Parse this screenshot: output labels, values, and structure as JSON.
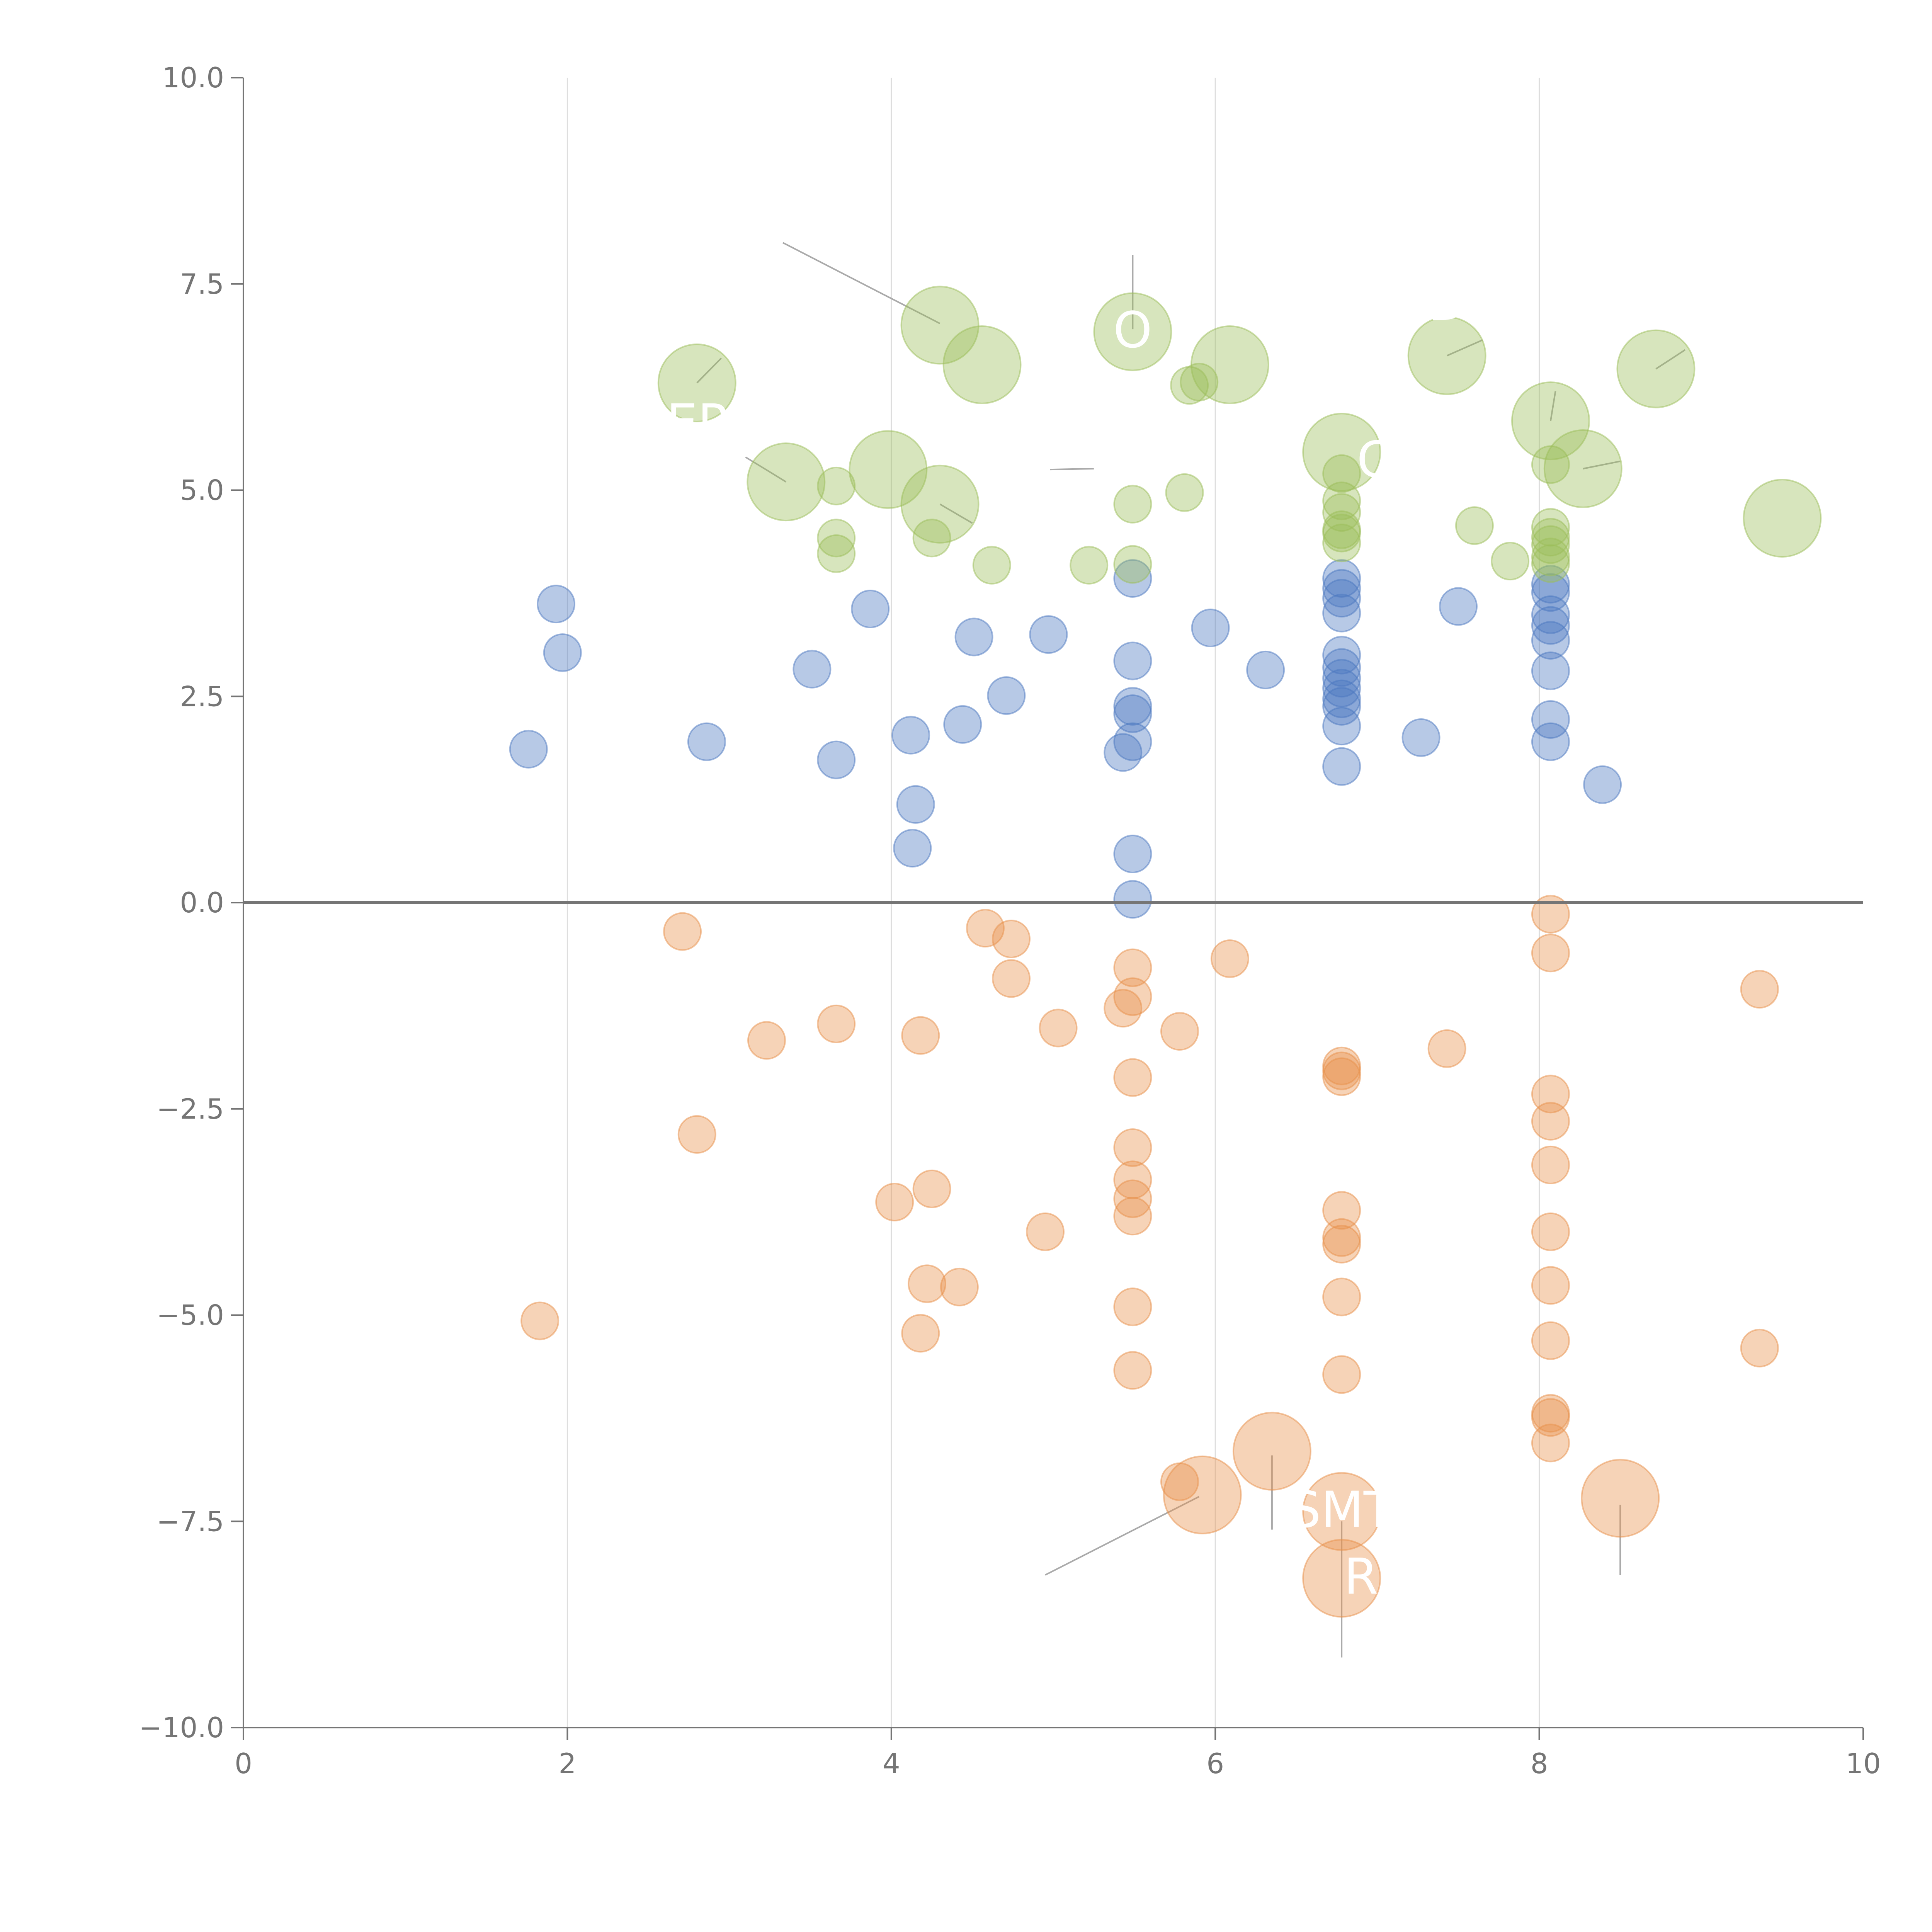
{
  "chart_data": {
    "type": "scatter",
    "title": "",
    "xlabel": "",
    "ylabel": "",
    "xlim": [
      0,
      10
    ],
    "ylim": [
      -10,
      10
    ],
    "x_ticks": [
      "0",
      "2",
      "4",
      "6",
      "8",
      "10"
    ],
    "y_ticks": [
      "10.0",
      "7.5",
      "5.0",
      "2.5",
      "0.0",
      "−2.5",
      "−5.0",
      "−7.5",
      "−10.0"
    ],
    "grid": "vertical",
    "colors": {
      "blue": "#4c78c0",
      "orange": "#e8904a",
      "green": "#9bbe5a",
      "axis": "#757575",
      "grid": "#dddddd",
      "leader": "#aaaaaa"
    },
    "series": [
      {
        "name": "blue",
        "color": "#4c78c0",
        "points": [
          [
            1.76,
            1.86
          ],
          [
            1.93,
            3.62
          ],
          [
            1.97,
            3.03
          ],
          [
            2.86,
            1.95
          ],
          [
            3.51,
            2.83
          ],
          [
            3.66,
            1.73
          ],
          [
            3.87,
            3.56
          ],
          [
            4.12,
            2.03
          ],
          [
            4.15,
            1.19
          ],
          [
            4.13,
            0.66
          ],
          [
            4.44,
            2.16
          ],
          [
            4.51,
            3.22
          ],
          [
            4.71,
            2.51
          ],
          [
            4.97,
            3.25
          ],
          [
            5.43,
            1.82
          ],
          [
            5.49,
            0.59
          ],
          [
            5.49,
            0.04
          ],
          [
            5.49,
            1.95
          ],
          [
            5.49,
            2.29
          ],
          [
            5.49,
            2.38
          ],
          [
            5.49,
            2.93
          ],
          [
            5.49,
            3.93
          ],
          [
            5.97,
            3.33
          ],
          [
            6.31,
            2.82
          ],
          [
            6.78,
            1.65
          ],
          [
            6.78,
            2.14
          ],
          [
            6.78,
            2.38
          ],
          [
            6.78,
            2.47
          ],
          [
            6.78,
            2.6
          ],
          [
            6.78,
            2.72
          ],
          [
            6.78,
            2.85
          ],
          [
            6.78,
            3.0
          ],
          [
            6.78,
            3.51
          ],
          [
            6.78,
            3.69
          ],
          [
            6.78,
            3.81
          ],
          [
            6.78,
            3.93
          ],
          [
            7.27,
            2.0
          ],
          [
            7.5,
            3.59
          ],
          [
            8.07,
            1.95
          ],
          [
            8.07,
            2.22
          ],
          [
            8.07,
            2.81
          ],
          [
            8.07,
            3.18
          ],
          [
            8.07,
            3.36
          ],
          [
            8.07,
            3.49
          ],
          [
            8.07,
            3.76
          ],
          [
            8.07,
            3.86
          ],
          [
            8.39,
            1.43
          ]
        ]
      },
      {
        "name": "orange",
        "color": "#e8904a",
        "points": [
          [
            1.83,
            -5.07
          ],
          [
            2.71,
            -0.35
          ],
          [
            2.8,
            -2.81
          ],
          [
            3.23,
            -1.67
          ],
          [
            3.66,
            -1.47
          ],
          [
            4.02,
            -3.63
          ],
          [
            4.18,
            -1.61
          ],
          [
            4.18,
            -5.22
          ],
          [
            4.22,
            -4.62
          ],
          [
            4.25,
            -3.47
          ],
          [
            4.42,
            -4.66
          ],
          [
            4.58,
            -0.31
          ],
          [
            4.74,
            -0.44
          ],
          [
            4.74,
            -0.92
          ],
          [
            4.95,
            -3.99
          ],
          [
            5.03,
            -1.52
          ],
          [
            5.43,
            -1.28
          ],
          [
            5.49,
            -0.79
          ],
          [
            5.49,
            -1.14
          ],
          [
            5.49,
            -2.12
          ],
          [
            5.49,
            -2.97
          ],
          [
            5.49,
            -3.36
          ],
          [
            5.49,
            -3.59
          ],
          [
            5.49,
            -3.8
          ],
          [
            5.49,
            -4.9
          ],
          [
            5.49,
            -5.67
          ],
          [
            5.78,
            -1.56
          ],
          [
            5.78,
            -7.02
          ],
          [
            6.09,
            -0.68
          ],
          [
            6.78,
            -1.98
          ],
          [
            6.78,
            -2.04
          ],
          [
            6.78,
            -2.11
          ],
          [
            6.78,
            -3.73
          ],
          [
            6.78,
            -4.06
          ],
          [
            6.78,
            -4.14
          ],
          [
            6.78,
            -4.78
          ],
          [
            6.78,
            -5.72
          ],
          [
            7.43,
            -1.77
          ],
          [
            8.07,
            -0.14
          ],
          [
            8.07,
            -0.61
          ],
          [
            8.07,
            -2.32
          ],
          [
            8.07,
            -2.65
          ],
          [
            8.07,
            -3.18
          ],
          [
            8.07,
            -3.99
          ],
          [
            8.07,
            -4.64
          ],
          [
            8.07,
            -5.31
          ],
          [
            8.07,
            -6.19
          ],
          [
            8.07,
            -6.24
          ],
          [
            8.07,
            -6.55
          ],
          [
            9.36,
            -1.05
          ],
          [
            9.36,
            -5.4
          ]
        ],
        "large_points": [
          [
            5.92,
            -7.18
          ],
          [
            6.35,
            -6.65
          ],
          [
            6.78,
            -7.38
          ],
          [
            6.78,
            -8.19
          ],
          [
            8.5,
            -7.22
          ]
        ]
      },
      {
        "name": "green",
        "color": "#9bbe5a",
        "points": [
          [
            3.66,
            5.05
          ],
          [
            3.66,
            4.42
          ],
          [
            3.66,
            4.23
          ],
          [
            4.25,
            4.42
          ],
          [
            4.62,
            4.09
          ],
          [
            5.22,
            4.09
          ],
          [
            5.49,
            4.83
          ],
          [
            5.49,
            4.1
          ],
          [
            5.84,
            6.27
          ],
          [
            5.9,
            6.31
          ],
          [
            5.81,
            4.97
          ],
          [
            6.78,
            5.2
          ],
          [
            6.78,
            4.87
          ],
          [
            6.78,
            4.73
          ],
          [
            6.78,
            4.52
          ],
          [
            6.78,
            4.48
          ],
          [
            6.78,
            4.36
          ],
          [
            7.6,
            4.57
          ],
          [
            7.82,
            4.14
          ],
          [
            8.07,
            5.31
          ],
          [
            8.07,
            4.55
          ],
          [
            8.07,
            4.43
          ],
          [
            8.07,
            4.34
          ],
          [
            8.07,
            4.19
          ],
          [
            8.07,
            4.11
          ]
        ],
        "large_points": [
          [
            2.8,
            6.3
          ],
          [
            3.35,
            5.1
          ],
          [
            3.98,
            5.25
          ],
          [
            4.3,
            7.0
          ],
          [
            4.3,
            4.83
          ],
          [
            4.56,
            6.52
          ],
          [
            5.49,
            6.92
          ],
          [
            6.09,
            6.52
          ],
          [
            6.78,
            5.46
          ],
          [
            7.43,
            6.63
          ],
          [
            8.07,
            5.84
          ],
          [
            8.27,
            5.26
          ],
          [
            8.72,
            6.47
          ],
          [
            9.5,
            4.66
          ]
        ]
      }
    ],
    "labels": [
      {
        "text": "O",
        "x": 5.49,
        "y": 6.92,
        "series": "green"
      },
      {
        "text": "ΕΡ",
        "x": 2.8,
        "y": 5.8,
        "series": "green"
      },
      {
        "text": "C",
        "x": 6.98,
        "y": 5.35,
        "series": "green"
      },
      {
        "text": "D",
        "x": 7.43,
        "y": 7.25,
        "series": "green"
      },
      {
        "text": "SMT",
        "x": 6.78,
        "y": -7.38,
        "series": "orange"
      },
      {
        "text": "R",
        "x": 6.9,
        "y": -8.19,
        "series": "orange"
      }
    ]
  }
}
